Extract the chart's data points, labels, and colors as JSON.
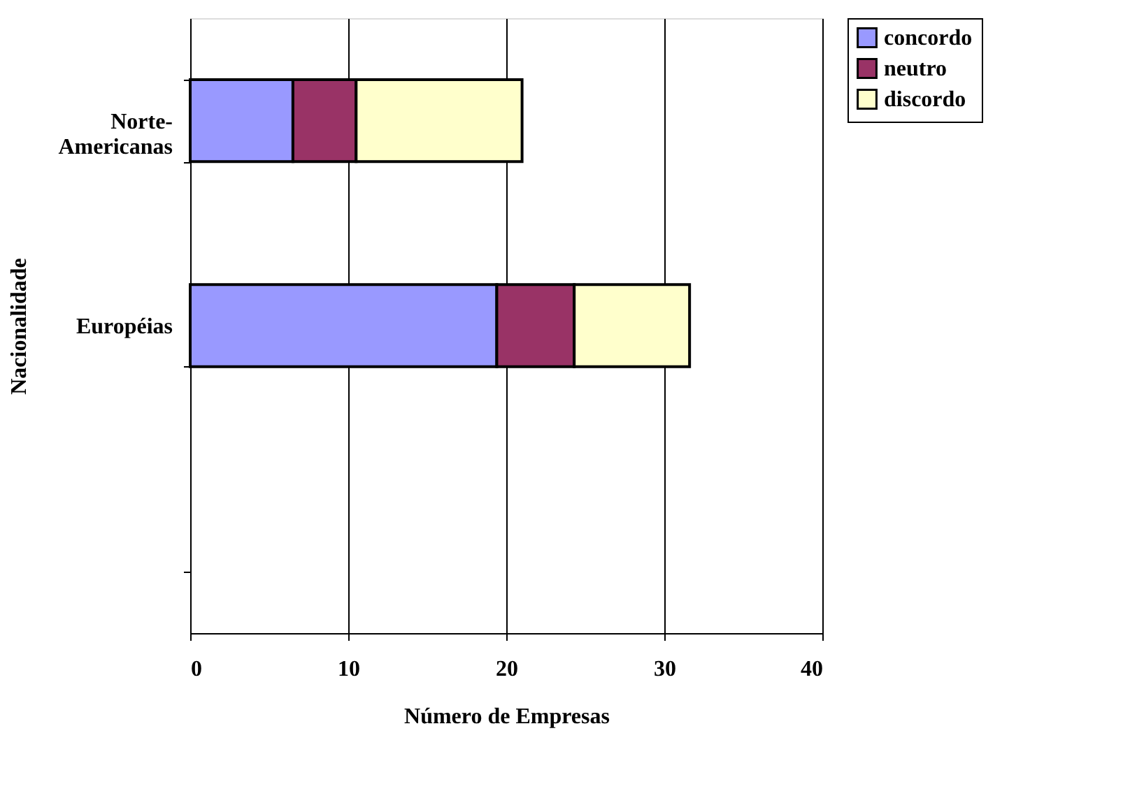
{
  "chart_data": {
    "type": "bar",
    "orientation": "horizontal",
    "stacked": true,
    "xlabel": "Número de Empresas",
    "ylabel": "Nacionalidade",
    "categories": [
      "Norte-Americanas",
      "Européias",
      null
    ],
    "series": [
      {
        "name": "concordo",
        "color": "#9999ff",
        "values": [
          6.5,
          19.4,
          null
        ]
      },
      {
        "name": "neutro",
        "color": "#993366",
        "values": [
          4,
          4.9,
          null
        ]
      },
      {
        "name": "discordo",
        "color": "#ffffcc",
        "values": [
          10.5,
          7.3,
          null
        ]
      }
    ],
    "xlim": [
      0,
      40
    ],
    "xticks": [
      0,
      10,
      20,
      30,
      40
    ],
    "grid": "x",
    "legend": "right"
  }
}
